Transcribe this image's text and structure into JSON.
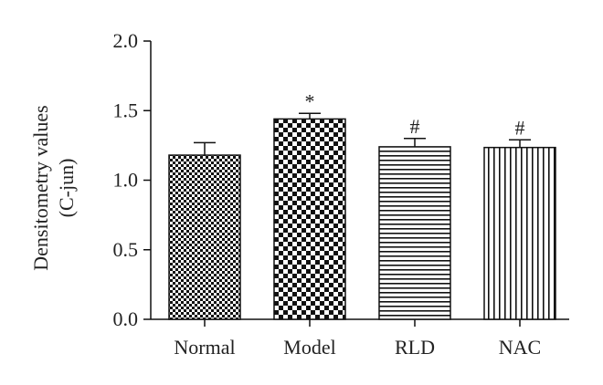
{
  "chart_data": {
    "type": "bar",
    "categories": [
      "Normal",
      "Model",
      "RLD",
      "NAC"
    ],
    "values": [
      1.18,
      1.44,
      1.24,
      1.235
    ],
    "errors": [
      0.09,
      0.04,
      0.06,
      0.055
    ],
    "annotations": [
      "",
      "*",
      "#",
      "#"
    ],
    "patterns": [
      "checker-fine",
      "checker-coarse",
      "horizontal-lines",
      "vertical-lines"
    ],
    "ylabel_lines": [
      "Densitometry values",
      "(C-jun)"
    ],
    "yticks": [
      "0.0",
      "0.5",
      "1.0",
      "1.5",
      "2.0"
    ],
    "ytick_values": [
      0,
      0.5,
      1.0,
      1.5,
      2.0
    ],
    "ylim": [
      0,
      2.0
    ],
    "grid": false,
    "bar_color": "#111111"
  }
}
